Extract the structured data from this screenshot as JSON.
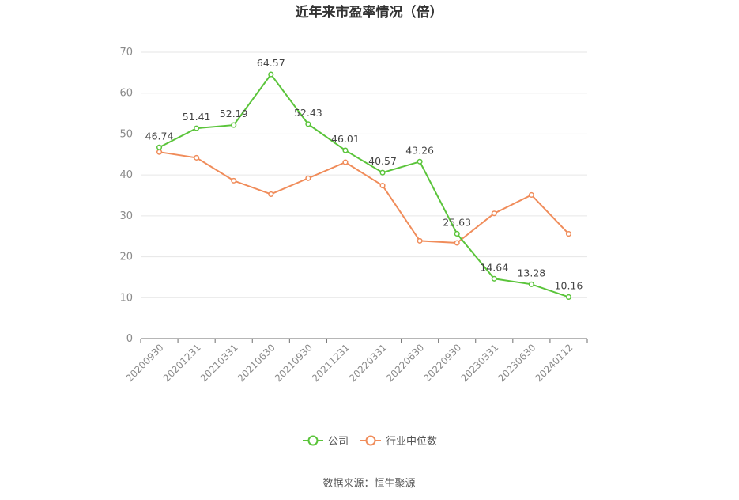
{
  "chart_data": {
    "type": "line",
    "title": "近年来市盈率情况（倍）",
    "categories": [
      "20200930",
      "20201231",
      "20210331",
      "20210630",
      "20210930",
      "20211231",
      "20220331",
      "20220630",
      "20220930",
      "20230331",
      "20230630",
      "20240112"
    ],
    "ylim": [
      0,
      70
    ],
    "yticks": [
      0,
      10,
      20,
      30,
      40,
      50,
      60,
      70
    ],
    "grid": true,
    "legend_position": "bottom",
    "series": [
      {
        "name": "公司",
        "color": "#5ac43a",
        "values": [
          46.74,
          51.41,
          52.19,
          64.57,
          52.43,
          46.01,
          40.57,
          43.26,
          25.63,
          14.64,
          13.28,
          10.16
        ],
        "labels": [
          "46.74",
          "51.41",
          "52.19",
          "64.57",
          "52.43",
          "46.01",
          "40.57",
          "43.26",
          "25.63",
          "14.64",
          "13.28",
          "10.16"
        ]
      },
      {
        "name": "行业中位数",
        "color": "#f08c5a",
        "values": [
          45.6,
          44.2,
          38.6,
          35.3,
          39.2,
          43.1,
          37.4,
          23.9,
          23.4,
          30.6,
          35.1,
          25.6
        ]
      }
    ]
  },
  "source": "数据来源：恒生聚源"
}
